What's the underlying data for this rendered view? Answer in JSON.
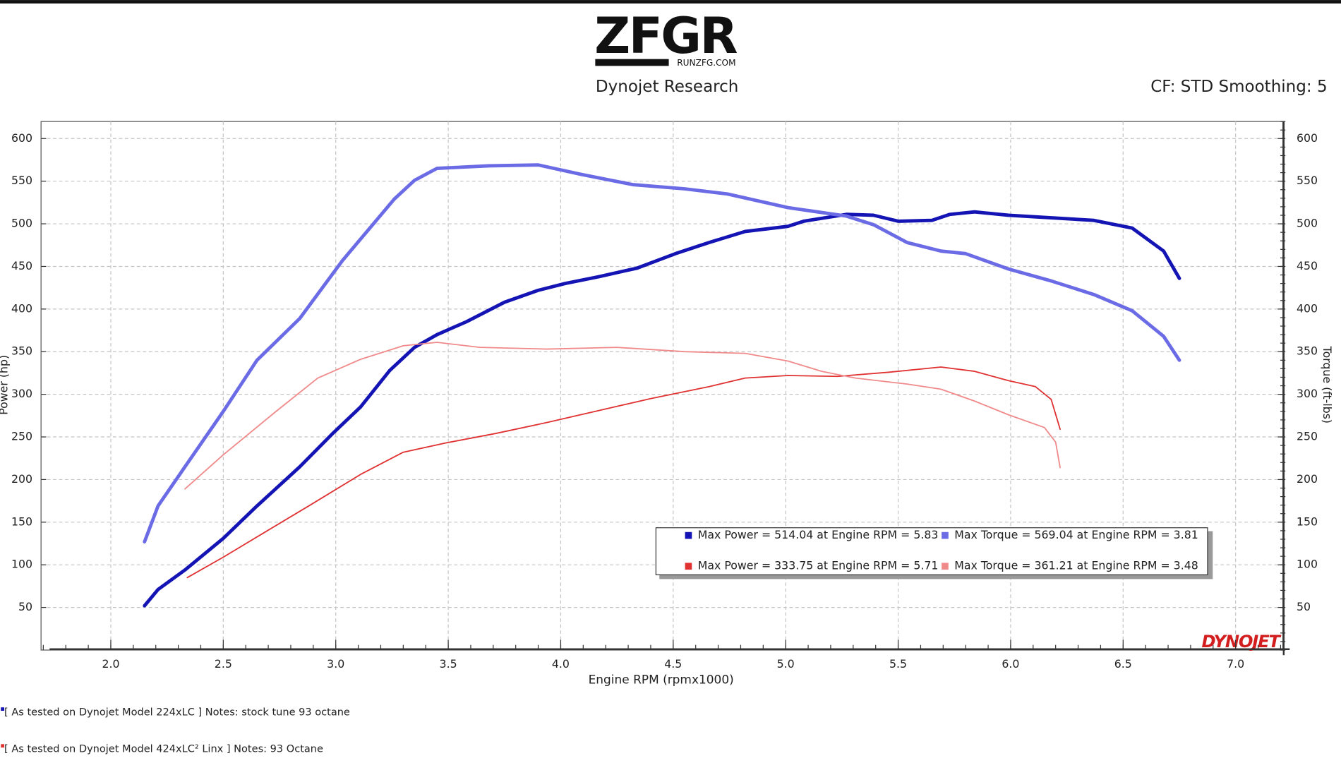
{
  "logo": {
    "text": "ZFGR",
    "url": "RUNZFG.COM"
  },
  "header": {
    "left": "Dynojet Research",
    "right": "CF: STD Smoothing: 5"
  },
  "brand": "DYNOJET",
  "notes": [
    "[ As tested on Dynojet Model 224xLC ] Notes: stock tune 93 octane",
    "[ As tested on Dynojet Model 424xLC² Linx ] Notes: 93 Octane"
  ],
  "chart_data": {
    "type": "line",
    "x_label": "Engine RPM (rpmx1000)",
    "y_label": "Power (hp)",
    "y2_label": "Torque (ft-lbs)",
    "xlim": [
      1.69,
      7.21
    ],
    "xticks": [
      {
        "value": 2,
        "label": "2.0"
      },
      2.5,
      {
        "value": 3,
        "label": "3.0"
      },
      3.5,
      {
        "value": 4,
        "label": "4.0"
      },
      4.5,
      {
        "value": 5,
        "label": "5.0"
      },
      5.5,
      {
        "value": 6,
        "label": "6.0"
      },
      6.5,
      {
        "value": 7,
        "label": "7.0"
      }
    ],
    "ylim": [
      0,
      620
    ],
    "yticks": [
      50,
      100,
      150,
      200,
      250,
      300,
      350,
      400,
      450,
      500,
      550,
      600
    ],
    "y2lim": [
      0,
      620
    ],
    "y2ticks": [
      50,
      100,
      150,
      200,
      250,
      300,
      350,
      400,
      450,
      500,
      550,
      600
    ],
    "grid": true,
    "series": [
      {
        "name": "Max Power = 514.04 at Engine RPM = 5.83",
        "color": "#1414b4",
        "x": [
          2.15,
          2.21,
          2.33,
          2.5,
          2.65,
          2.84,
          2.99,
          3.11,
          3.24,
          3.35,
          3.45,
          3.58,
          3.75,
          3.9,
          4.02,
          4.17,
          4.34,
          4.51,
          4.66,
          4.82,
          5.01,
          5.08,
          5.27,
          5.39,
          5.5,
          5.65,
          5.73,
          5.84,
          5.99,
          6.18,
          6.37,
          6.54,
          6.68,
          6.75
        ],
        "values": [
          52,
          71,
          94,
          131,
          169,
          215,
          255,
          285,
          328,
          355,
          370,
          385,
          408,
          422,
          430,
          438,
          448,
          465,
          478,
          491,
          497,
          503,
          511,
          510,
          503,
          504,
          511,
          514,
          510,
          507,
          504,
          495,
          468,
          436
        ]
      },
      {
        "name": "Max Torque = 569.04 at Engine RPM = 3.81",
        "color": "#6b6be6",
        "x": [
          2.15,
          2.21,
          2.33,
          2.5,
          2.65,
          2.84,
          3.03,
          3.26,
          3.35,
          3.45,
          3.68,
          3.9,
          4.09,
          4.32,
          4.55,
          4.74,
          5.01,
          5.27,
          5.39,
          5.54,
          5.69,
          5.8,
          5.99,
          6.18,
          6.37,
          6.54,
          6.68,
          6.75
        ],
        "values": [
          127,
          169,
          215,
          280,
          340,
          389,
          457,
          529,
          551,
          565,
          568,
          569,
          558,
          546,
          541,
          535,
          519,
          509,
          499,
          478,
          468,
          465,
          447,
          433,
          417,
          398,
          368,
          340
        ]
      },
      {
        "name": "Max Power = 333.75 at Engine RPM = 5.71",
        "color": "#e03232",
        "x": [
          2.34,
          2.5,
          2.69,
          2.88,
          3.11,
          3.3,
          3.49,
          3.71,
          3.94,
          4.17,
          4.4,
          4.66,
          4.82,
          5.01,
          5.23,
          5.46,
          5.69,
          5.84,
          5.99,
          6.11,
          6.18,
          6.22
        ],
        "values": [
          85,
          109,
          139,
          169,
          206,
          232,
          243,
          254,
          267,
          281,
          295,
          309,
          319,
          322,
          321,
          326,
          332,
          327,
          316,
          309,
          294,
          259
        ]
      },
      {
        "name": "Max Torque = 361.21 at Engine RPM = 3.48",
        "color": "#f08a8a",
        "x": [
          2.33,
          2.5,
          2.73,
          2.92,
          3.11,
          3.3,
          3.45,
          3.64,
          3.94,
          4.25,
          4.55,
          4.82,
          5.01,
          5.16,
          5.31,
          5.54,
          5.69,
          5.84,
          5.99,
          6.15,
          6.2,
          6.22
        ],
        "values": [
          189,
          229,
          279,
          319,
          341,
          357,
          361,
          355,
          353,
          355,
          350,
          348,
          339,
          327,
          319,
          312,
          306,
          292,
          276,
          261,
          244,
          214
        ]
      }
    ]
  }
}
